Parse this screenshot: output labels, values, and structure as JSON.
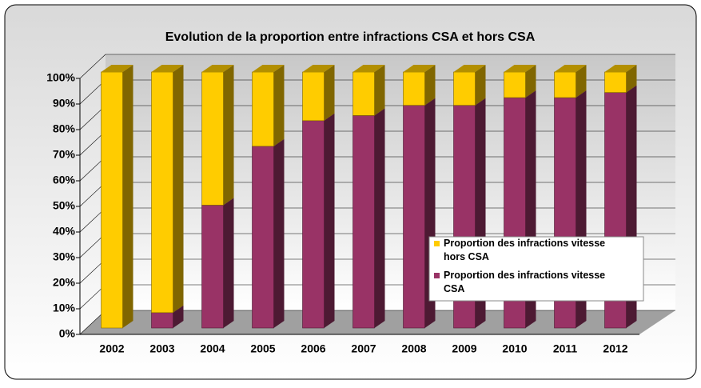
{
  "chart_data": {
    "type": "bar3d_stacked",
    "title": "Evolution de la proportion entre infractions CSA et hors CSA",
    "categories": [
      "2002",
      "2003",
      "2004",
      "2005",
      "2006",
      "2007",
      "2008",
      "2009",
      "2010",
      "2011",
      "2012"
    ],
    "series": [
      {
        "name": "Proportion des infractions vitesse CSA",
        "color": "#993366",
        "values": [
          0,
          6,
          48,
          71,
          81,
          83,
          87,
          87,
          90,
          90,
          92
        ]
      },
      {
        "name": "Proportion des infractions vitesse hors CSA",
        "color": "#ffcc00",
        "values": [
          100,
          94,
          52,
          29,
          19,
          17,
          13,
          13,
          10,
          10,
          8
        ]
      }
    ],
    "ylim": [
      0,
      100
    ],
    "yticks": [
      {
        "value": 0,
        "label": "0%"
      },
      {
        "value": 10,
        "label": "10%"
      },
      {
        "value": 20,
        "label": "20%"
      },
      {
        "value": 30,
        "label": "30%"
      },
      {
        "value": 40,
        "label": "40%"
      },
      {
        "value": 50,
        "label": "50%"
      },
      {
        "value": 60,
        "label": "60%"
      },
      {
        "value": 70,
        "label": "70%"
      },
      {
        "value": 80,
        "label": "80%"
      },
      {
        "value": 90,
        "label": "90%"
      },
      {
        "value": 100,
        "label": "100%"
      }
    ],
    "grid": true,
    "legend": "right"
  }
}
